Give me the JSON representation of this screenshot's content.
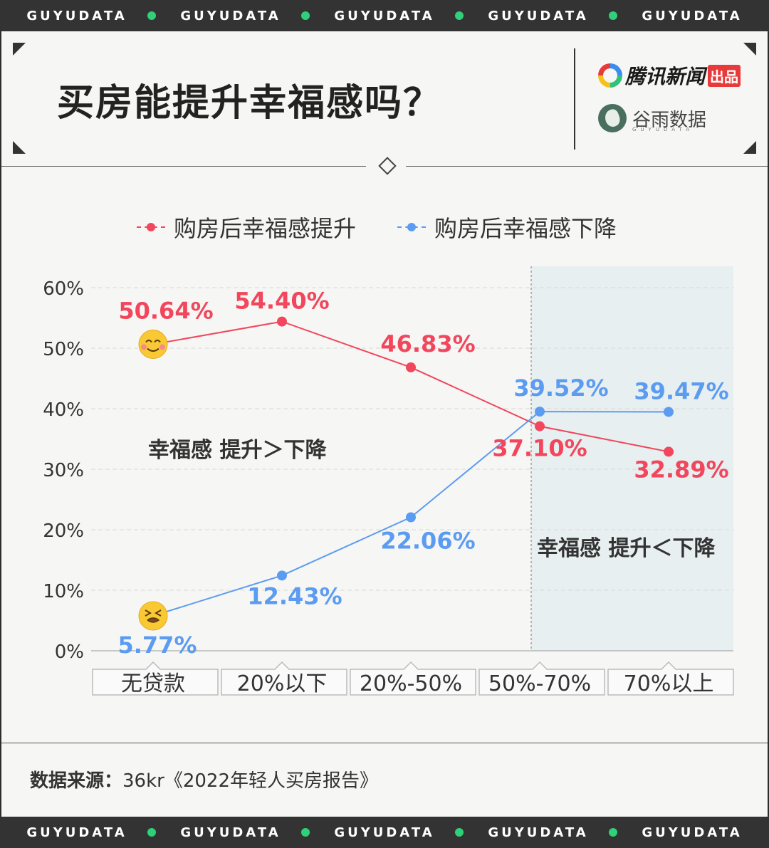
{
  "band": {
    "text": "GUYUDATA",
    "repeat": 5
  },
  "header": {
    "title": "买房能提升幸福感吗？",
    "brand_primary": "腾讯新闻",
    "brand_primary_tag": "出品",
    "brand_secondary": "谷雨数据",
    "brand_secondary_sub": "GUYUDATA"
  },
  "colors": {
    "rise": "#f2465c",
    "fall": "#5b9cf2",
    "shade": "#e8eff0"
  },
  "chart_data": {
    "type": "line",
    "categories": [
      "无贷款",
      "20%以下",
      "20%-50%",
      "50%-70%",
      "70%以上"
    ],
    "ylim": [
      0,
      60
    ],
    "yticks": [
      "0%",
      "10%",
      "20%",
      "30%",
      "40%",
      "50%",
      "60%"
    ],
    "series": [
      {
        "name": "购房后幸福感提升",
        "values": [
          50.64,
          54.4,
          46.83,
          37.1,
          32.89
        ],
        "labels": [
          "50.64%",
          "54.40%",
          "46.83%",
          "37.10%",
          "32.89%"
        ]
      },
      {
        "name": "购房后幸福感下降",
        "values": [
          5.77,
          12.43,
          22.06,
          39.52,
          39.47
        ],
        "labels": [
          "5.77%",
          "12.43%",
          "22.06%",
          "39.52%",
          "39.47%"
        ]
      }
    ],
    "annotations": [
      "幸福感  提升＞下降",
      "幸福感  提升＜下降"
    ],
    "grid": true,
    "legend": "top"
  },
  "source": {
    "label": "数据来源：",
    "text": "36kr《2022年轻人买房报告》"
  }
}
